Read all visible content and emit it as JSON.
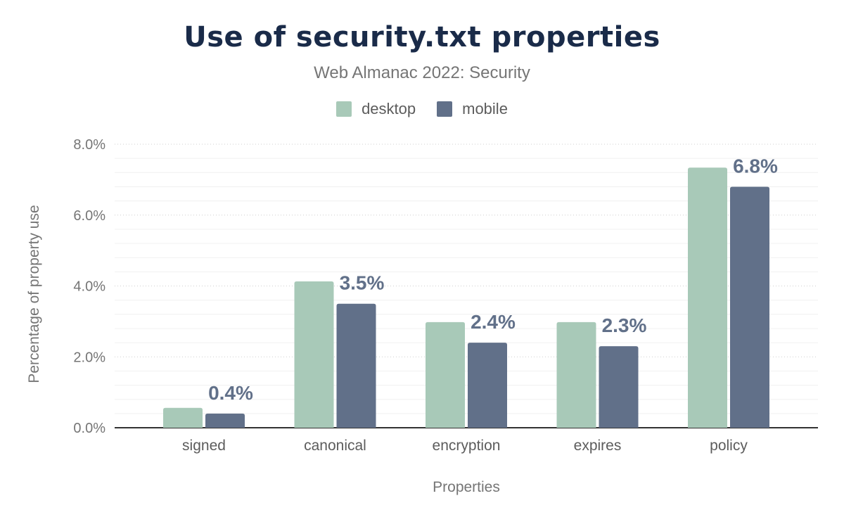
{
  "chart_data": {
    "type": "bar",
    "title": "Use of security.txt properties",
    "subtitle": "Web Almanac 2022: Security",
    "xlabel": "Properties",
    "ylabel": "Percentage of property use",
    "categories": [
      "signed",
      "canonical",
      "encryption",
      "expires",
      "policy"
    ],
    "series": [
      {
        "name": "desktop",
        "color": "#a8c9b8",
        "values": [
          0.56,
          4.13,
          2.98,
          2.98,
          7.34
        ]
      },
      {
        "name": "mobile",
        "color": "#617089",
        "values": [
          0.4,
          3.5,
          2.4,
          2.3,
          6.8
        ],
        "data_labels": [
          "0.4%",
          "3.5%",
          "2.4%",
          "2.3%",
          "6.8%"
        ]
      }
    ],
    "ylim": [
      0,
      8
    ],
    "yticks": [
      "0.0%",
      "2.0%",
      "4.0%",
      "6.0%",
      "8.0%"
    ],
    "grid": true,
    "legend": "top"
  }
}
